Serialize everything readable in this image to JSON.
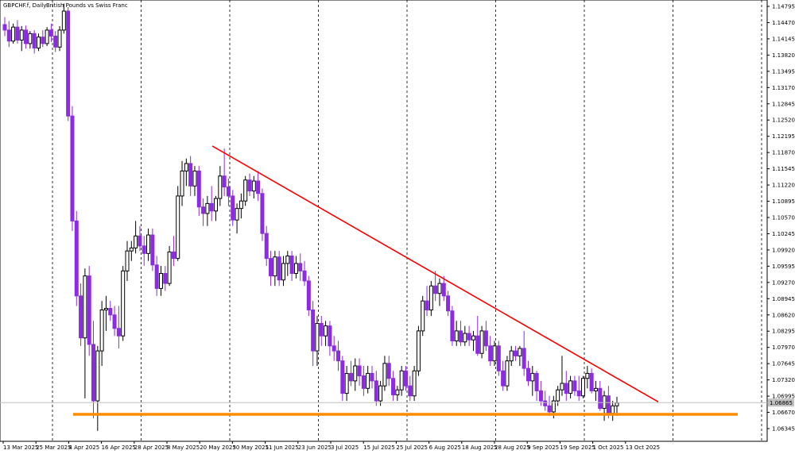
{
  "chart_title": {
    "symbol": "GBPCHF.f, Daily:",
    "description": "British Pounds vs Swiss Franc"
  },
  "current_price_label": "1.06865",
  "colors": {
    "background": "#ffffff",
    "bull_candle": "#000000",
    "bear_candle": "#8b2be2",
    "resistance_line": "#ff0000",
    "support_line": "#ff8c00",
    "grid": "#000000",
    "price_line": "#c0c0c0"
  },
  "chart_data": {
    "type": "candlestick",
    "title": "GBPCHF.f, Daily: British Pounds vs Swiss Franc",
    "ylim": [
      1.0615,
      1.1492
    ],
    "y_ticks": [
      "1.14795",
      "1.14470",
      "1.14145",
      "1.13820",
      "1.13495",
      "1.13170",
      "1.12845",
      "1.12520",
      "1.12195",
      "1.11870",
      "1.11545",
      "1.11220",
      "1.10895",
      "1.10570",
      "1.10245",
      "1.09920",
      "1.09595",
      "1.09270",
      "1.08945",
      "1.08620",
      "1.08295",
      "1.07970",
      "1.07645",
      "1.07320",
      "1.06995",
      "1.06670",
      "1.06345"
    ],
    "x_ticks": [
      "13 Mar 2025",
      "25 Mar 2025",
      "4 Apr 2025",
      "16 Apr 2025",
      "28 Apr 2025",
      "8 May 2025",
      "20 May 2025",
      "30 May 2025",
      "11 Jun 2025",
      "23 Jun 2025",
      "3 Jul 2025",
      "15 Jul 2025",
      "25 Jul 2025",
      "6 Aug 2025",
      "18 Aug 2025",
      "28 Aug 2025",
      "9 Sep 2025",
      "19 Sep 2025",
      "1 Oct 2025",
      "13 Oct 2025"
    ],
    "grid": "vertical dashed lines",
    "candles_ohlc": [
      [
        1.1443,
        1.1458,
        1.142,
        1.1432
      ],
      [
        1.1432,
        1.145,
        1.1398,
        1.141
      ],
      [
        1.141,
        1.1445,
        1.1405,
        1.1438
      ],
      [
        1.1438,
        1.1452,
        1.1405,
        1.1412
      ],
      [
        1.1412,
        1.144,
        1.139,
        1.1432
      ],
      [
        1.1432,
        1.1441,
        1.1395,
        1.1405
      ],
      [
        1.1405,
        1.143,
        1.1395,
        1.1425
      ],
      [
        1.1425,
        1.1432,
        1.1385,
        1.1396
      ],
      [
        1.1396,
        1.1425,
        1.139,
        1.1418
      ],
      [
        1.1418,
        1.1432,
        1.1398,
        1.1405
      ],
      [
        1.1405,
        1.1438,
        1.14,
        1.1432
      ],
      [
        1.1432,
        1.1445,
        1.1408,
        1.142
      ],
      [
        1.142,
        1.143,
        1.1388,
        1.1398
      ],
      [
        1.1398,
        1.144,
        1.139,
        1.1432
      ],
      [
        1.1432,
        1.1485,
        1.1425,
        1.147
      ],
      [
        1.147,
        1.1478,
        1.125,
        1.126
      ],
      [
        1.126,
        1.128,
        1.103,
        1.105
      ],
      [
        1.105,
        1.107,
        1.088,
        1.09
      ],
      [
        1.09,
        1.0925,
        1.08,
        1.0816
      ],
      [
        1.0816,
        1.0955,
        1.0695,
        1.094
      ],
      [
        1.094,
        1.096,
        1.078,
        1.0803
      ],
      [
        1.0803,
        1.085,
        1.0655,
        1.069
      ],
      [
        1.069,
        1.08,
        1.063,
        1.079
      ],
      [
        1.079,
        1.089,
        1.076,
        1.0872
      ],
      [
        1.0872,
        1.09,
        1.083,
        1.0875
      ],
      [
        1.0875,
        1.089,
        1.085,
        1.0862
      ],
      [
        1.0862,
        1.088,
        1.082,
        1.0835
      ],
      [
        1.0835,
        1.088,
        1.0795,
        1.082
      ],
      [
        1.082,
        1.096,
        1.081,
        1.095
      ],
      [
        1.095,
        1.101,
        1.093,
        1.099
      ],
      [
        1.099,
        1.101,
        1.097,
        1.0996
      ],
      [
        1.0996,
        1.105,
        1.0985,
        1.102
      ],
      [
        1.102,
        1.104,
        1.099,
        1.1
      ],
      [
        1.1,
        1.102,
        1.096,
        1.0985
      ],
      [
        1.0985,
        1.1035,
        1.097,
        1.1022
      ],
      [
        1.1022,
        1.1035,
        1.095,
        1.0962
      ],
      [
        1.0962,
        1.098,
        1.09,
        1.0915
      ],
      [
        1.0915,
        1.096,
        1.09,
        1.0945
      ],
      [
        1.0945,
        1.096,
        1.091,
        1.0925
      ],
      [
        1.0925,
        1.1,
        1.092,
        1.0988
      ],
      [
        1.0988,
        1.102,
        1.096,
        1.0975
      ],
      [
        1.0975,
        1.112,
        1.097,
        1.11
      ],
      [
        1.11,
        1.117,
        1.108,
        1.115
      ],
      [
        1.115,
        1.1175,
        1.112,
        1.1165
      ],
      [
        1.1165,
        1.118,
        1.11,
        1.112
      ],
      [
        1.112,
        1.116,
        1.11,
        1.115
      ],
      [
        1.115,
        1.116,
        1.106,
        1.1078
      ],
      [
        1.1078,
        1.1095,
        1.104,
        1.1065
      ],
      [
        1.1065,
        1.11,
        1.104,
        1.1085
      ],
      [
        1.1085,
        1.112,
        1.105,
        1.107
      ],
      [
        1.107,
        1.11,
        1.105,
        1.1095
      ],
      [
        1.1095,
        1.116,
        1.108,
        1.114
      ],
      [
        1.114,
        1.1195,
        1.11,
        1.1118
      ],
      [
        1.1118,
        1.1135,
        1.108,
        1.11
      ],
      [
        1.11,
        1.1112,
        1.104,
        1.1052
      ],
      [
        1.1052,
        1.1085,
        1.1025,
        1.1075
      ],
      [
        1.1075,
        1.1105,
        1.1055,
        1.109
      ],
      [
        1.109,
        1.114,
        1.108,
        1.1132
      ],
      [
        1.1132,
        1.1145,
        1.11,
        1.111
      ],
      [
        1.111,
        1.114,
        1.1095,
        1.113
      ],
      [
        1.113,
        1.115,
        1.109,
        1.1105
      ],
      [
        1.1105,
        1.1115,
        1.101,
        1.1025
      ],
      [
        1.1025,
        1.104,
        1.096,
        1.0975
      ],
      [
        1.0975,
        1.099,
        1.092,
        1.094
      ],
      [
        1.094,
        1.099,
        1.092,
        1.0978
      ],
      [
        1.0978,
        1.099,
        1.092,
        1.0932
      ],
      [
        1.0932,
        1.098,
        1.092,
        1.0965
      ],
      [
        1.0965,
        1.099,
        1.094,
        1.098
      ],
      [
        1.098,
        1.099,
        1.093,
        1.0945
      ],
      [
        1.0945,
        1.098,
        1.0935,
        1.0965
      ],
      [
        1.0965,
        1.0985,
        1.093,
        1.095
      ],
      [
        1.095,
        1.097,
        1.092,
        1.093
      ],
      [
        1.093,
        1.094,
        1.086,
        1.0872
      ],
      [
        1.0872,
        1.089,
        1.076,
        1.079
      ],
      [
        1.079,
        1.086,
        1.076,
        1.0845
      ],
      [
        1.0845,
        1.086,
        1.08,
        1.082
      ],
      [
        1.082,
        1.085,
        1.08,
        1.084
      ],
      [
        1.084,
        1.085,
        1.078,
        1.08
      ],
      [
        1.08,
        1.082,
        1.077,
        1.079
      ],
      [
        1.079,
        1.081,
        1.075,
        1.077
      ],
      [
        1.077,
        1.078,
        1.069,
        1.0705
      ],
      [
        1.0705,
        1.076,
        1.069,
        1.0745
      ],
      [
        1.0745,
        1.077,
        1.072,
        1.073
      ],
      [
        1.073,
        1.0775,
        1.071,
        1.076
      ],
      [
        1.076,
        1.0775,
        1.072,
        1.074
      ],
      [
        1.074,
        1.076,
        1.07,
        1.0715
      ],
      [
        1.0715,
        1.076,
        1.0705,
        1.0745
      ],
      [
        1.0745,
        1.076,
        1.0715,
        1.073
      ],
      [
        1.073,
        1.075,
        1.068,
        1.069
      ],
      [
        1.069,
        1.073,
        1.068,
        1.072
      ],
      [
        1.072,
        1.078,
        1.071,
        1.0765
      ],
      [
        1.0765,
        1.078,
        1.072,
        1.0735
      ],
      [
        1.0735,
        1.075,
        1.069,
        1.0702
      ],
      [
        1.0702,
        1.072,
        1.069,
        1.0712
      ],
      [
        1.0712,
        1.076,
        1.07,
        1.075
      ],
      [
        1.075,
        1.076,
        1.071,
        1.072
      ],
      [
        1.072,
        1.074,
        1.069,
        1.07
      ],
      [
        1.07,
        1.076,
        1.069,
        1.075
      ],
      [
        1.075,
        1.084,
        1.074,
        1.083
      ],
      [
        1.083,
        1.09,
        1.082,
        1.089
      ],
      [
        1.089,
        1.092,
        1.086,
        1.0872
      ],
      [
        1.0872,
        1.093,
        1.086,
        1.092
      ],
      [
        1.092,
        1.095,
        1.089,
        1.0905
      ],
      [
        1.0905,
        1.0935,
        1.088,
        1.0925
      ],
      [
        1.0925,
        1.094,
        1.089,
        1.09
      ],
      [
        1.09,
        1.091,
        1.086,
        1.087
      ],
      [
        1.087,
        1.088,
        1.08,
        1.081
      ],
      [
        1.081,
        1.085,
        1.08,
        1.083
      ],
      [
        1.083,
        1.085,
        1.08,
        1.0808
      ],
      [
        1.0808,
        1.084,
        1.08,
        1.0825
      ],
      [
        1.0825,
        1.084,
        1.08,
        1.0812
      ],
      [
        1.0812,
        1.083,
        1.079,
        1.082
      ],
      [
        1.082,
        1.086,
        1.078,
        1.0785
      ],
      [
        1.0785,
        1.084,
        1.0775,
        1.083
      ],
      [
        1.083,
        1.085,
        1.079,
        1.08
      ],
      [
        1.08,
        1.082,
        1.076,
        1.077
      ],
      [
        1.077,
        1.081,
        1.076,
        1.08
      ],
      [
        1.08,
        1.081,
        1.074,
        1.075
      ],
      [
        1.075,
        1.077,
        1.071,
        1.072
      ],
      [
        1.072,
        1.078,
        1.071,
        1.077
      ],
      [
        1.077,
        1.08,
        1.076,
        1.079
      ],
      [
        1.079,
        1.08,
        1.077,
        1.078
      ],
      [
        1.078,
        1.08,
        1.076,
        1.0795
      ],
      [
        1.0795,
        1.083,
        1.074,
        1.0755
      ],
      [
        1.0755,
        1.077,
        1.072,
        1.073
      ],
      [
        1.073,
        1.076,
        1.07,
        1.0745
      ],
      [
        1.0745,
        1.075,
        1.069,
        1.071
      ],
      [
        1.071,
        1.073,
        1.068,
        1.069
      ],
      [
        1.069,
        1.071,
        1.067,
        1.068
      ],
      [
        1.068,
        1.07,
        1.066,
        1.0668
      ],
      [
        1.0668,
        1.07,
        1.0655,
        1.069
      ],
      [
        1.069,
        1.072,
        1.068,
        1.0712
      ],
      [
        1.0712,
        1.078,
        1.07,
        1.0725
      ],
      [
        1.0725,
        1.075,
        1.069,
        1.0705
      ],
      [
        1.0705,
        1.074,
        1.0695,
        1.073
      ],
      [
        1.073,
        1.074,
        1.07,
        1.071
      ],
      [
        1.071,
        1.074,
        1.069,
        1.07
      ],
      [
        1.07,
        1.074,
        1.0695,
        1.0735
      ],
      [
        1.0735,
        1.076,
        1.0715,
        1.0745
      ],
      [
        1.0745,
        1.0755,
        1.0705,
        1.071
      ],
      [
        1.071,
        1.073,
        1.069,
        1.0715
      ],
      [
        1.0715,
        1.073,
        1.067,
        1.0675
      ],
      [
        1.0675,
        1.071,
        1.065,
        1.07
      ],
      [
        1.07,
        1.072,
        1.0655,
        1.0665
      ],
      [
        1.0665,
        1.069,
        1.065,
        1.068
      ],
      [
        1.068,
        1.0698,
        1.066,
        1.0686
      ]
    ],
    "annotations": [
      {
        "type": "trendline",
        "color": "red",
        "from": {
          "date": "26 May 2025",
          "price": 1.12
        },
        "to": {
          "date": "25 Oct 2025",
          "price": 1.0688
        }
      },
      {
        "type": "horizontal",
        "color": "orange",
        "price": 1.0663
      },
      {
        "type": "price_marker",
        "price": 1.06865
      }
    ]
  }
}
